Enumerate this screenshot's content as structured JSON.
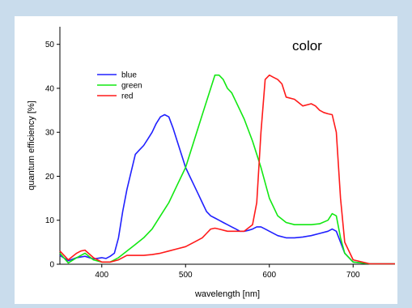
{
  "chart_data": {
    "type": "line",
    "title": "",
    "annotation": "color",
    "xlabel": "wavelength [nm]",
    "ylabel": "quantum efficiency [%]",
    "xlim": [
      350,
      750
    ],
    "ylim": [
      0,
      54
    ],
    "xticks": [
      400,
      500,
      600,
      700
    ],
    "yticks": [
      0,
      10,
      20,
      30,
      40,
      50
    ],
    "grid": false,
    "legend": "top-left",
    "series": [
      {
        "name": "blue",
        "color": "#2020ff",
        "x": [
          350,
          360,
          370,
          380,
          390,
          400,
          405,
          410,
          415,
          420,
          425,
          430,
          435,
          440,
          445,
          450,
          455,
          460,
          465,
          470,
          475,
          480,
          485,
          490,
          495,
          500,
          505,
          510,
          515,
          520,
          525,
          530,
          535,
          540,
          545,
          550,
          555,
          560,
          565,
          570,
          575,
          580,
          585,
          590,
          595,
          600,
          610,
          620,
          630,
          640,
          650,
          660,
          670,
          675,
          680,
          685,
          690,
          700,
          720,
          750
        ],
        "y": [
          2.0,
          0.8,
          1.5,
          1.8,
          1.2,
          1.5,
          1.3,
          1.8,
          2.5,
          6,
          12,
          17,
          21,
          25,
          26,
          27,
          28.5,
          30,
          32,
          33.5,
          34,
          33.5,
          31,
          28,
          25,
          22,
          20,
          18,
          16,
          14,
          12,
          11,
          10.5,
          10,
          9.5,
          9,
          8.5,
          8,
          7.5,
          7.5,
          7.7,
          8,
          8.5,
          8.5,
          8,
          7.5,
          6.5,
          6,
          6,
          6.2,
          6.5,
          7,
          7.5,
          8,
          7.5,
          5,
          2.5,
          0.5,
          0.1,
          0.1
        ]
      },
      {
        "name": "green",
        "color": "#12e812",
        "x": [
          350,
          360,
          370,
          380,
          390,
          400,
          410,
          420,
          430,
          440,
          450,
          460,
          470,
          480,
          490,
          500,
          510,
          520,
          530,
          535,
          540,
          545,
          550,
          555,
          560,
          570,
          580,
          590,
          600,
          610,
          620,
          630,
          640,
          650,
          660,
          670,
          675,
          680,
          685,
          690,
          700,
          720,
          750
        ],
        "y": [
          2.5,
          0.3,
          1.5,
          2.5,
          1,
          0.5,
          0.5,
          1.5,
          3,
          4.5,
          6,
          8,
          11,
          14,
          18,
          22,
          28,
          34,
          40,
          43,
          43,
          42,
          40,
          39,
          37,
          33,
          28,
          22,
          15,
          11,
          9.5,
          9,
          9,
          9,
          9.2,
          10,
          11.5,
          11,
          6,
          2.5,
          0.5,
          0.1,
          0.1
        ]
      },
      {
        "name": "red",
        "color": "#ff1a1a",
        "x": [
          350,
          360,
          370,
          375,
          380,
          390,
          400,
          410,
          420,
          430,
          440,
          450,
          460,
          470,
          480,
          490,
          500,
          510,
          520,
          525,
          530,
          535,
          540,
          550,
          560,
          570,
          580,
          585,
          590,
          595,
          600,
          605,
          610,
          615,
          620,
          630,
          640,
          650,
          655,
          660,
          665,
          670,
          675,
          680,
          685,
          690,
          700,
          720,
          750
        ],
        "y": [
          3,
          1,
          2.5,
          3,
          3.2,
          1.5,
          0.5,
          0.5,
          1,
          2,
          2,
          2,
          2.2,
          2.5,
          3,
          3.5,
          4,
          5,
          6,
          7,
          8,
          8.2,
          8,
          7.5,
          7.5,
          7.5,
          9,
          14,
          30,
          42,
          43,
          42.5,
          42,
          41,
          38,
          37.5,
          36,
          36.5,
          36,
          35,
          34.5,
          34.2,
          34,
          30,
          15,
          5,
          1,
          0.1,
          0.1
        ]
      }
    ]
  }
}
